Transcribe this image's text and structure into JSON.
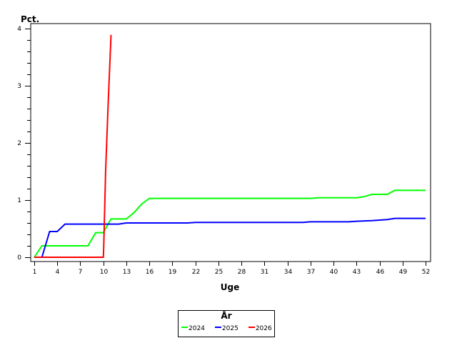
{
  "chart_data": {
    "type": "line",
    "title": "",
    "xlabel": "Uge",
    "ylabel": "Pct.",
    "xlim": [
      1,
      52
    ],
    "ylim": [
      0,
      4
    ],
    "x_ticks": [
      1,
      4,
      7,
      10,
      13,
      16,
      19,
      22,
      25,
      28,
      31,
      34,
      37,
      40,
      43,
      46,
      49,
      52
    ],
    "y_ticks": [
      0,
      1,
      2,
      3,
      4
    ],
    "y_minor_step": 0.2,
    "grid": false,
    "legend_position": "bottom",
    "legend_title": "År",
    "series": [
      {
        "name": "2024",
        "color": "#00ff00",
        "points": [
          [
            1,
            0
          ],
          [
            2,
            0.2
          ],
          [
            8,
            0.2
          ],
          [
            9,
            0.43
          ],
          [
            10,
            0.43
          ],
          [
            11,
            0.67
          ],
          [
            13,
            0.67
          ],
          [
            14,
            0.78
          ],
          [
            15,
            0.93
          ],
          [
            16,
            1.03
          ],
          [
            37,
            1.03
          ],
          [
            38,
            1.04
          ],
          [
            43,
            1.04
          ],
          [
            44,
            1.06
          ],
          [
            45,
            1.1
          ],
          [
            47,
            1.1
          ],
          [
            48,
            1.17
          ],
          [
            52,
            1.17
          ]
        ]
      },
      {
        "name": "2025",
        "color": "#0000ff",
        "points": [
          [
            2,
            0
          ],
          [
            3,
            0.45
          ],
          [
            4,
            0.45
          ],
          [
            5,
            0.58
          ],
          [
            12,
            0.58
          ],
          [
            13,
            0.6
          ],
          [
            21,
            0.6
          ],
          [
            22,
            0.61
          ],
          [
            36,
            0.61
          ],
          [
            37,
            0.62
          ],
          [
            42,
            0.62
          ],
          [
            43,
            0.63
          ],
          [
            45,
            0.64
          ],
          [
            47,
            0.66
          ],
          [
            48,
            0.68
          ],
          [
            52,
            0.68
          ]
        ]
      },
      {
        "name": "2026",
        "color": "#ff0000",
        "points": [
          [
            1,
            0
          ],
          [
            10,
            0
          ],
          [
            10.05,
            0.15
          ],
          [
            10.3,
            1.5
          ],
          [
            10.6,
            2.6
          ],
          [
            11,
            3.89
          ]
        ]
      }
    ]
  },
  "axes": {
    "y_title": "Pct.",
    "x_title": "Uge"
  },
  "legend": {
    "title": "År",
    "items": [
      {
        "label": "2024",
        "color": "#00ff00"
      },
      {
        "label": "2025",
        "color": "#0000ff"
      },
      {
        "label": "2026",
        "color": "#ff0000"
      }
    ]
  }
}
